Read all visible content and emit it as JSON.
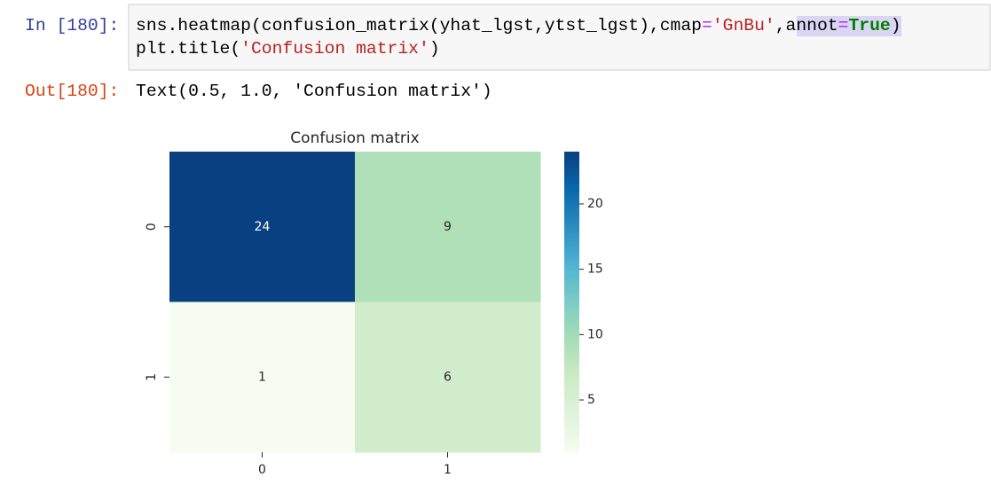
{
  "input_prompt": "In [180]:",
  "code": [
    [
      "sns.heatmap(confusion_matrix(yhat_lgst,ytst_lgst),cmap",
      "=",
      "'GnBu'",
      ",",
      "annot",
      "=",
      "True",
      ")"
    ],
    [
      "plt.title(",
      "'Confusion matrix'",
      ")"
    ]
  ],
  "output_prompt": "Out[180]:",
  "output_text": "Text(0.5, 1.0, 'Confusion matrix')",
  "chart_data": {
    "type": "heatmap",
    "title": "Confusion matrix",
    "x_categories": [
      "0",
      "1"
    ],
    "y_categories": [
      "0",
      "1"
    ],
    "values": [
      [
        24,
        9
      ],
      [
        1,
        6
      ]
    ],
    "cmap": "GnBu",
    "zlim": [
      1,
      24
    ],
    "zticks": [
      5,
      10,
      15,
      20
    ]
  }
}
